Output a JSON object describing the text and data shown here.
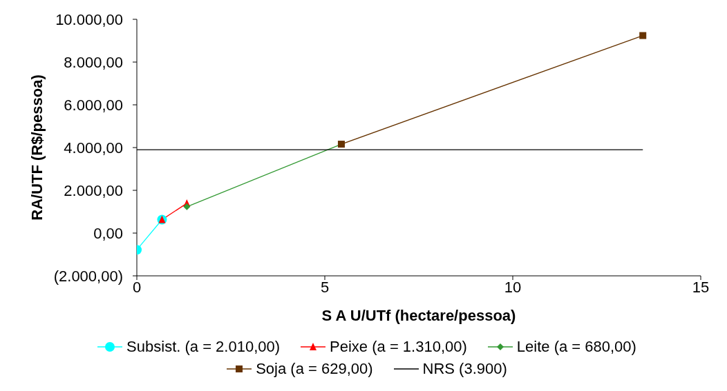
{
  "chart_data": {
    "type": "line",
    "xlabel": "S A U/UTf (hectare/pessoa)",
    "ylabel": "RA/UTF (R$/pessoa)",
    "xlim": [
      0,
      15
    ],
    "xticks": [
      0,
      5,
      10,
      15
    ],
    "ylim": [
      -2000,
      10000
    ],
    "yticks": [
      {
        "value": -2000,
        "label": "(2.000,00)"
      },
      {
        "value": 0,
        "label": "0,00"
      },
      {
        "value": 2000,
        "label": "2.000,00"
      },
      {
        "value": 4000,
        "label": "4.000,00"
      },
      {
        "value": 6000,
        "label": "6.000,00"
      },
      {
        "value": 8000,
        "label": "8.000,00"
      },
      {
        "value": 10000,
        "label": "10.000,00"
      }
    ],
    "grid": false,
    "legend": "bottom",
    "series": [
      {
        "name": "Subsist. (a = 2.010,00)",
        "color": "#00ffff",
        "marker": "circle",
        "x": [
          0,
          0.67
        ],
        "values": [
          -780,
          630
        ]
      },
      {
        "name": "Peixe (a = 1.310,00)",
        "color": "#ff0000",
        "marker": "triangle",
        "x": [
          0.67,
          1.33
        ],
        "values": [
          630,
          1390
        ]
      },
      {
        "name": "Leite (a = 680,00)",
        "color": "#339933",
        "marker": "diamond",
        "x": [
          1.33,
          5.44
        ],
        "values": [
          1230,
          4160
        ]
      },
      {
        "name": "Soja (a = 629,00)",
        "color": "#663300",
        "marker": "square",
        "x": [
          5.44,
          13.46
        ],
        "values": [
          4160,
          9240
        ]
      },
      {
        "name": "NRS (3.900)",
        "color": "#000000",
        "marker": "none",
        "x": [
          0,
          13.46
        ],
        "values": [
          3900,
          3900
        ]
      }
    ]
  }
}
